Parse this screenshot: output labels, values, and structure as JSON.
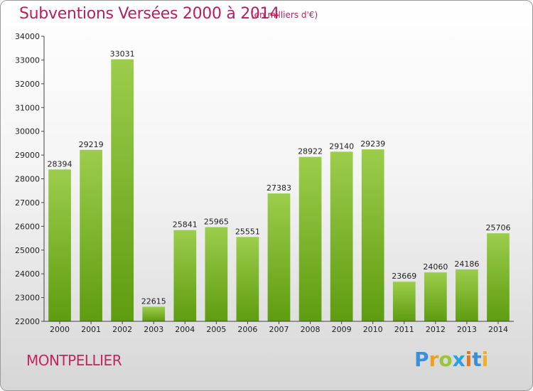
{
  "header": {
    "title": "Subventions Versées 2000 à 2014",
    "unit": "(en milliers d'€)"
  },
  "footer": {
    "city": "MONTPELLIER",
    "logo_text": "Proxiti"
  },
  "colors": {
    "title": "#b81e5e",
    "bar_top": "#9ccd4c",
    "bar_bottom": "#5e9c10"
  },
  "chart_data": {
    "type": "bar",
    "title": "Subventions Versées 2000 à 2014",
    "xlabel": "",
    "ylabel": "",
    "categories": [
      "2000",
      "2001",
      "2002",
      "2003",
      "2004",
      "2005",
      "2006",
      "2007",
      "2008",
      "2009",
      "2010",
      "2011",
      "2012",
      "2013",
      "2014"
    ],
    "values": [
      28394,
      29219,
      33031,
      22615,
      25841,
      25965,
      25551,
      27383,
      28922,
      29140,
      29239,
      23669,
      24060,
      24186,
      25706
    ],
    "ylim": [
      22000,
      34000
    ],
    "yticks": [
      22000,
      23000,
      24000,
      25000,
      26000,
      27000,
      28000,
      29000,
      30000,
      31000,
      32000,
      33000,
      34000
    ],
    "grid": false
  }
}
